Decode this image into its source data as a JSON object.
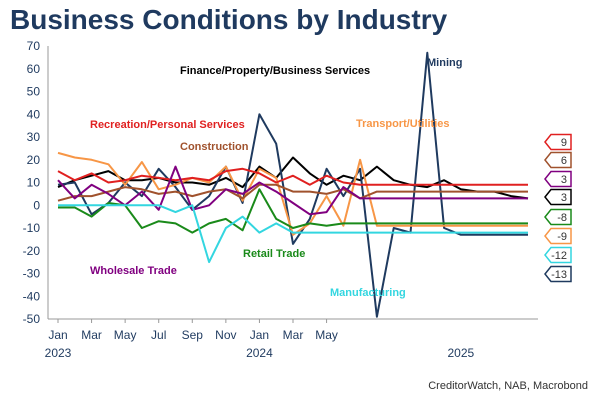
{
  "title": "Business Conditions by Industry",
  "source": "CreditorWatch, NAB, Macrobond",
  "chart_data": {
    "type": "line",
    "title": "Business Conditions by Industry",
    "ylim": [
      -50,
      70
    ],
    "yticks": [
      70,
      60,
      50,
      40,
      30,
      20,
      10,
      0,
      -10,
      -20,
      -30,
      -40,
      -50
    ],
    "x": [
      "2023-01",
      "2023-02",
      "2023-03",
      "2023-04",
      "2023-05",
      "2023-06",
      "2023-07",
      "2023-08",
      "2023-09",
      "2023-10",
      "2023-11",
      "2023-12",
      "2024-01",
      "2024-02",
      "2024-03",
      "2024-04",
      "2024-05",
      "2024-06",
      "2024-07",
      "2024-08",
      "2024-09",
      "2024-10",
      "2024-11",
      "2024-12",
      "2025-01",
      "2025-02",
      "2025-03",
      "2025-04",
      "2025-05"
    ],
    "xtick_months": [
      "Jan",
      "Mar",
      "May",
      "Jul",
      "Sep",
      "Nov",
      "Jan",
      "Mar",
      "May"
    ],
    "xtick_years": [
      "2023",
      "2024",
      "2025"
    ],
    "grid": false,
    "series": [
      {
        "name": "Finance/Property/Business Services",
        "color": "#000000",
        "values": [
          8,
          11,
          13,
          15,
          11,
          11,
          12,
          10,
          10,
          9,
          12,
          8,
          17,
          12,
          21,
          14,
          9,
          13,
          11,
          17,
          11,
          9,
          8,
          11,
          7,
          6,
          6,
          4,
          3
        ]
      },
      {
        "name": "Mining",
        "color": "#1f3a5f",
        "values": [
          9,
          10,
          -4,
          1,
          10,
          4,
          16,
          8,
          -2,
          4,
          17,
          1,
          40,
          27,
          -17,
          -6,
          16,
          4,
          16,
          -49,
          -10,
          -12,
          67,
          -10,
          -13,
          -13,
          -13,
          -13,
          -13
        ]
      },
      {
        "name": "Transport/Utilities",
        "color": "#f79646",
        "values": [
          23,
          21,
          20,
          18,
          9,
          19,
          7,
          9,
          12,
          10,
          17,
          2,
          16,
          12,
          -13,
          -8,
          4,
          -9,
          20,
          -9,
          -9,
          -9,
          -9,
          -9,
          -9,
          -9,
          -9,
          -9,
          -9
        ]
      },
      {
        "name": "Recreation/Personal Services",
        "color": "#e02020",
        "values": [
          15,
          11,
          14,
          10,
          11,
          13,
          12,
          11,
          12,
          11,
          15,
          16,
          14,
          10,
          13,
          9,
          13,
          10,
          9,
          9,
          9,
          9,
          9,
          9,
          9,
          9,
          9,
          9,
          9
        ]
      },
      {
        "name": "Construction",
        "color": "#a0522d",
        "values": [
          2,
          4,
          4,
          6,
          8,
          7,
          5,
          6,
          4,
          6,
          7,
          3,
          9,
          9,
          6,
          6,
          5,
          7,
          3,
          6,
          6,
          6,
          6,
          6,
          6,
          6,
          6,
          6,
          6
        ]
      },
      {
        "name": "Wholesale Trade",
        "color": "#800080",
        "values": [
          11,
          3,
          9,
          5,
          0,
          6,
          -2,
          17,
          -2,
          0,
          7,
          5,
          10,
          6,
          1,
          -4,
          -3,
          8,
          3,
          3,
          3,
          3,
          3,
          3,
          3,
          3,
          3,
          3,
          3
        ]
      },
      {
        "name": "Retail Trade",
        "color": "#1a8a1a",
        "values": [
          -1,
          -1,
          -5,
          1,
          0,
          -10,
          -7,
          -8,
          -12,
          -8,
          -6,
          -11,
          7,
          -6,
          -10,
          -8,
          -9,
          -8,
          -8,
          -8,
          -8,
          -8,
          -8,
          -8,
          -8,
          -8,
          -8,
          -8,
          -8
        ]
      },
      {
        "name": "Manufacturing",
        "color": "#33d6e0",
        "values": [
          0,
          0,
          0,
          0,
          0,
          0,
          0,
          -3,
          0,
          -25,
          -10,
          -5,
          -12,
          -8,
          -12,
          -12,
          -12,
          -12,
          -12,
          -12,
          -12,
          -12,
          -12,
          -12,
          -12,
          -12,
          -12,
          -12,
          -12
        ]
      }
    ],
    "end_labels": [
      {
        "text": "9",
        "color": "#e02020",
        "value": 9
      },
      {
        "text": "6",
        "color": "#a0522d",
        "value": 6
      },
      {
        "text": "3",
        "color": "#800080",
        "value": 3
      },
      {
        "text": "3",
        "color": "#000000",
        "value": 3
      },
      {
        "text": "-8",
        "color": "#1a8a1a",
        "value": -8
      },
      {
        "text": "-9",
        "color": "#f79646",
        "value": -9
      },
      {
        "text": "-12",
        "color": "#33d6e0",
        "value": -12
      },
      {
        "text": "-13",
        "color": "#1f3a5f",
        "value": -13
      }
    ],
    "annotations": [
      {
        "text": "Finance/Property/Business Services",
        "color": "#000000",
        "series_ref": 0
      },
      {
        "text": "Mining",
        "color": "#1f3a5f",
        "series_ref": 1
      },
      {
        "text": "Transport/Utilities",
        "color": "#f79646",
        "series_ref": 2
      },
      {
        "text": "Recreation/Personal Services",
        "color": "#e02020",
        "series_ref": 3
      },
      {
        "text": "Construction",
        "color": "#a0522d",
        "series_ref": 4
      },
      {
        "text": "Wholesale Trade",
        "color": "#800080",
        "series_ref": 5
      },
      {
        "text": "Retail Trade",
        "color": "#1a8a1a",
        "series_ref": 6
      },
      {
        "text": "Manufacturing",
        "color": "#33d6e0",
        "series_ref": 7
      }
    ]
  }
}
